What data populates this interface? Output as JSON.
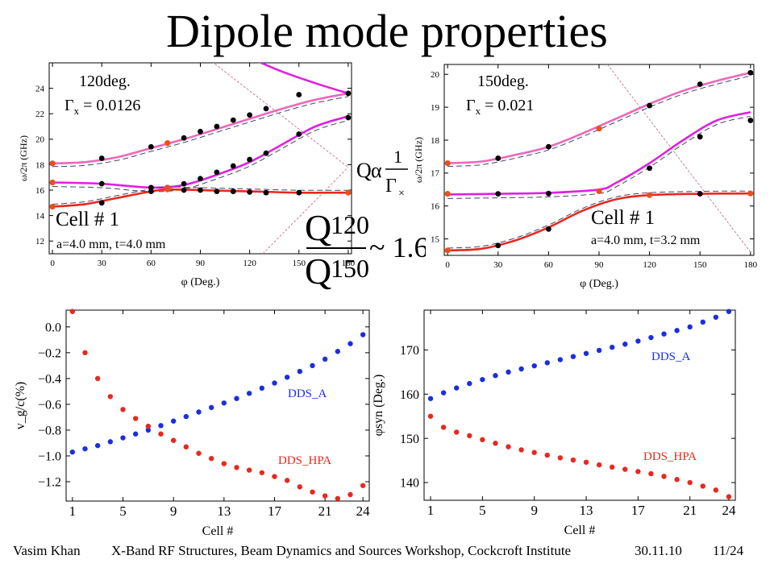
{
  "slide_title": "Dipole mode properties",
  "footer": {
    "author": "Vasim Khan",
    "event": "X-Band RF Structures, Beam Dynamics and Sources Workshop, Cockcroft Institute",
    "date": "30.11.10",
    "page": "11/24"
  },
  "formula": {
    "q": "Q",
    "alpha": "α",
    "one": "1",
    "gamma": "Γ",
    "gamma_sub": "×",
    "q120": "Q",
    "q120_sub": "120",
    "q150": "Q",
    "q150_sub": "150",
    "approx": "~ 1.6"
  },
  "colors": {
    "upper_curve": "#ee66bb",
    "middle_curve": "#e020e0",
    "lower_curve": "#e8281e",
    "points_black": "#000000",
    "points_orange": "#e8501e",
    "dashed": "#444466",
    "light_line": "#c080a0",
    "dds_a": "#1a2ee0",
    "dds_hpa": "#e8281e"
  },
  "chart_data": [
    {
      "type": "line",
      "annotation_angle": "120deg.",
      "annotation_gamma": "Γ",
      "annotation_gamma_sub": "x",
      "annotation_gamma_value": "= 0.0126",
      "annotation_cell": "Cell # 1",
      "annotation_geometry": "a=4.0 mm, t=4.0 mm",
      "xlabel": "φ (Deg.)",
      "ylabel": "ω/2π (GHz)",
      "xlim": [
        -2,
        182
      ],
      "ylim": [
        11,
        26
      ],
      "xticks": [
        0,
        30,
        60,
        90,
        120,
        150,
        180
      ],
      "yticks": [
        12,
        14,
        16,
        18,
        20,
        22,
        24
      ],
      "series": [
        {
          "role": "upper",
          "x": [
            0,
            20,
            40,
            60,
            80,
            100,
            120,
            140,
            160,
            180
          ],
          "y": [
            18.1,
            18.2,
            18.6,
            19.3,
            20.0,
            20.8,
            21.6,
            22.4,
            23.1,
            23.6
          ]
        },
        {
          "role": "middle",
          "x": [
            0,
            30,
            60,
            80,
            100,
            120,
            140,
            160,
            180
          ],
          "y": [
            16.6,
            16.5,
            16.2,
            16.4,
            17.2,
            18.2,
            19.6,
            21.0,
            21.8
          ]
        },
        {
          "role": "lower",
          "x": [
            0,
            20,
            40,
            60,
            70,
            90,
            120,
            150,
            180
          ],
          "y": [
            14.7,
            14.9,
            15.4,
            15.9,
            16.05,
            16.0,
            15.9,
            15.8,
            15.8
          ]
        },
        {
          "role": "top-branch",
          "x": [
            118,
            140,
            160,
            180
          ],
          "y": [
            26.5,
            25.3,
            24.4,
            23.6
          ]
        }
      ],
      "points_black": [
        [
          30,
          18.5
        ],
        [
          60,
          19.4
        ],
        [
          80,
          20.1
        ],
        [
          90,
          20.6
        ],
        [
          100,
          21.0
        ],
        [
          110,
          21.5
        ],
        [
          120,
          21.9
        ],
        [
          130,
          22.4
        ],
        [
          150,
          23.5
        ],
        [
          180,
          23.6
        ],
        [
          30,
          16.5
        ],
        [
          60,
          16.2
        ],
        [
          80,
          16.5
        ],
        [
          90,
          16.9
        ],
        [
          100,
          17.4
        ],
        [
          110,
          17.9
        ],
        [
          120,
          18.4
        ],
        [
          130,
          18.9
        ],
        [
          150,
          20.4
        ],
        [
          180,
          21.7
        ],
        [
          30,
          15.0
        ],
        [
          60,
          15.9
        ],
        [
          80,
          16.0
        ],
        [
          90,
          16.0
        ],
        [
          100,
          15.9
        ],
        [
          110,
          15.9
        ],
        [
          120,
          15.85
        ],
        [
          130,
          15.8
        ],
        [
          150,
          15.8
        ]
      ],
      "points_orange": [
        [
          0,
          18.1
        ],
        [
          70,
          19.7
        ],
        [
          0,
          16.6
        ],
        [
          70,
          16.2
        ],
        [
          0,
          14.7
        ],
        [
          70,
          16.05
        ],
        [
          180,
          15.8
        ]
      ],
      "light_lines": [
        {
          "x": [
            93,
            180
          ],
          "y": [
            26.5,
            17.8
          ]
        },
        {
          "x": [
            128,
            180
          ],
          "y": [
            11,
            17.8
          ]
        }
      ]
    },
    {
      "type": "line",
      "annotation_angle": "150deg.",
      "annotation_gamma": "Γ",
      "annotation_gamma_sub": "x",
      "annotation_gamma_value": "= 0.021",
      "annotation_cell": "Cell # 1",
      "annotation_geometry": "a=4.0 mm, t=3.2 mm",
      "xlabel": "φ (Deg.)",
      "ylabel": "ω/2π (GHz)",
      "xlim": [
        -2,
        182
      ],
      "ylim": [
        14.5,
        20.3
      ],
      "xticks": [
        0,
        30,
        60,
        90,
        120,
        150,
        180
      ],
      "yticks": [
        15,
        16,
        17,
        18,
        19,
        20
      ],
      "series": [
        {
          "role": "upper",
          "x": [
            0,
            20,
            40,
            60,
            80,
            100,
            120,
            140,
            160,
            180
          ],
          "y": [
            17.3,
            17.35,
            17.55,
            17.8,
            18.2,
            18.65,
            19.1,
            19.5,
            19.8,
            20.05
          ]
        },
        {
          "role": "middle",
          "x": [
            0,
            30,
            60,
            90,
            100,
            120,
            140,
            160,
            180
          ],
          "y": [
            16.35,
            16.37,
            16.4,
            16.5,
            16.7,
            17.3,
            18.0,
            18.6,
            18.85
          ]
        },
        {
          "role": "lower",
          "x": [
            0,
            20,
            40,
            60,
            80,
            100,
            120,
            150,
            180
          ],
          "y": [
            14.65,
            14.7,
            14.95,
            15.35,
            15.85,
            16.2,
            16.33,
            16.37,
            16.38
          ]
        }
      ],
      "points_black": [
        [
          30,
          17.45
        ],
        [
          60,
          17.8
        ],
        [
          120,
          19.05
        ],
        [
          150,
          19.7
        ],
        [
          180,
          20.05
        ],
        [
          30,
          16.37
        ],
        [
          60,
          16.38
        ],
        [
          120,
          17.15
        ],
        [
          150,
          18.1
        ],
        [
          180,
          18.6
        ],
        [
          30,
          14.8
        ],
        [
          60,
          15.3
        ],
        [
          150,
          16.37
        ]
      ],
      "points_orange": [
        [
          0,
          17.3
        ],
        [
          90,
          18.35
        ],
        [
          0,
          16.37
        ],
        [
          90,
          16.45
        ],
        [
          0,
          14.65
        ],
        [
          120,
          16.33
        ],
        [
          180,
          16.38
        ]
      ],
      "light_lines": [
        {
          "x": [
            95,
            180
          ],
          "y": [
            20.3,
            14.6
          ]
        }
      ]
    },
    {
      "type": "scatter",
      "xlabel": "Cell #",
      "ylabel": "v_g/c(%)",
      "xlim": [
        0.5,
        24.5
      ],
      "ylim": [
        -1.35,
        0.13
      ],
      "xticks": [
        1,
        5,
        9,
        13,
        17,
        21,
        24
      ],
      "yticks": [
        0.0,
        -0.2,
        -0.4,
        -0.6,
        -0.8,
        -1.0,
        -1.2
      ],
      "series": [
        {
          "name": "DDS_A",
          "x": [
            1,
            2,
            3,
            4,
            5,
            6,
            7,
            8,
            9,
            10,
            11,
            12,
            13,
            14,
            15,
            16,
            17,
            18,
            19,
            20,
            21,
            22,
            23,
            24
          ],
          "values": [
            -0.97,
            -0.945,
            -0.92,
            -0.89,
            -0.86,
            -0.83,
            -0.8,
            -0.765,
            -0.73,
            -0.695,
            -0.66,
            -0.625,
            -0.59,
            -0.555,
            -0.515,
            -0.475,
            -0.435,
            -0.39,
            -0.345,
            -0.3,
            -0.25,
            -0.19,
            -0.13,
            -0.06
          ]
        },
        {
          "name": "DDS_HPA",
          "x": [
            1,
            2,
            3,
            4,
            5,
            6,
            7,
            8,
            9,
            10,
            11,
            12,
            13,
            14,
            15,
            16,
            17,
            18,
            19,
            20,
            21,
            22,
            23,
            24
          ],
          "values": [
            0.12,
            -0.2,
            -0.4,
            -0.54,
            -0.64,
            -0.71,
            -0.77,
            -0.83,
            -0.88,
            -0.93,
            -0.98,
            -1.02,
            -1.06,
            -1.09,
            -1.11,
            -1.13,
            -1.16,
            -1.19,
            -1.24,
            -1.28,
            -1.31,
            -1.33,
            -1.3,
            -1.23
          ]
        }
      ]
    },
    {
      "type": "scatter",
      "xlabel": "Cell #",
      "ylabel": "φsyn (Deg.)",
      "xlim": [
        0.5,
        24.5
      ],
      "ylim": [
        136,
        179
      ],
      "xticks": [
        1,
        5,
        9,
        13,
        17,
        21,
        24
      ],
      "yticks": [
        140,
        150,
        160,
        170
      ],
      "series": [
        {
          "name": "DDS_A",
          "x": [
            1,
            2,
            3,
            4,
            5,
            6,
            7,
            8,
            9,
            10,
            11,
            12,
            13,
            14,
            15,
            16,
            17,
            18,
            19,
            20,
            21,
            22,
            23,
            24
          ],
          "values": [
            159.0,
            160.3,
            161.4,
            162.4,
            163.3,
            164.2,
            165.0,
            165.7,
            166.4,
            167.1,
            167.8,
            168.5,
            169.2,
            169.9,
            170.6,
            171.3,
            172.0,
            172.8,
            173.6,
            174.4,
            175.2,
            176.3,
            177.4,
            178.7
          ]
        },
        {
          "name": "DDS_HPA",
          "x": [
            1,
            2,
            3,
            4,
            5,
            6,
            7,
            8,
            9,
            10,
            11,
            12,
            13,
            14,
            15,
            16,
            17,
            18,
            19,
            20,
            21,
            22,
            23,
            24
          ],
          "values": [
            155.0,
            152.5,
            151.4,
            150.6,
            149.7,
            148.9,
            148.1,
            147.4,
            146.8,
            146.2,
            145.6,
            145.1,
            144.6,
            144.0,
            143.5,
            143.0,
            142.5,
            142.0,
            141.4,
            140.7,
            140.0,
            139.2,
            138.3,
            136.8
          ]
        }
      ]
    }
  ]
}
